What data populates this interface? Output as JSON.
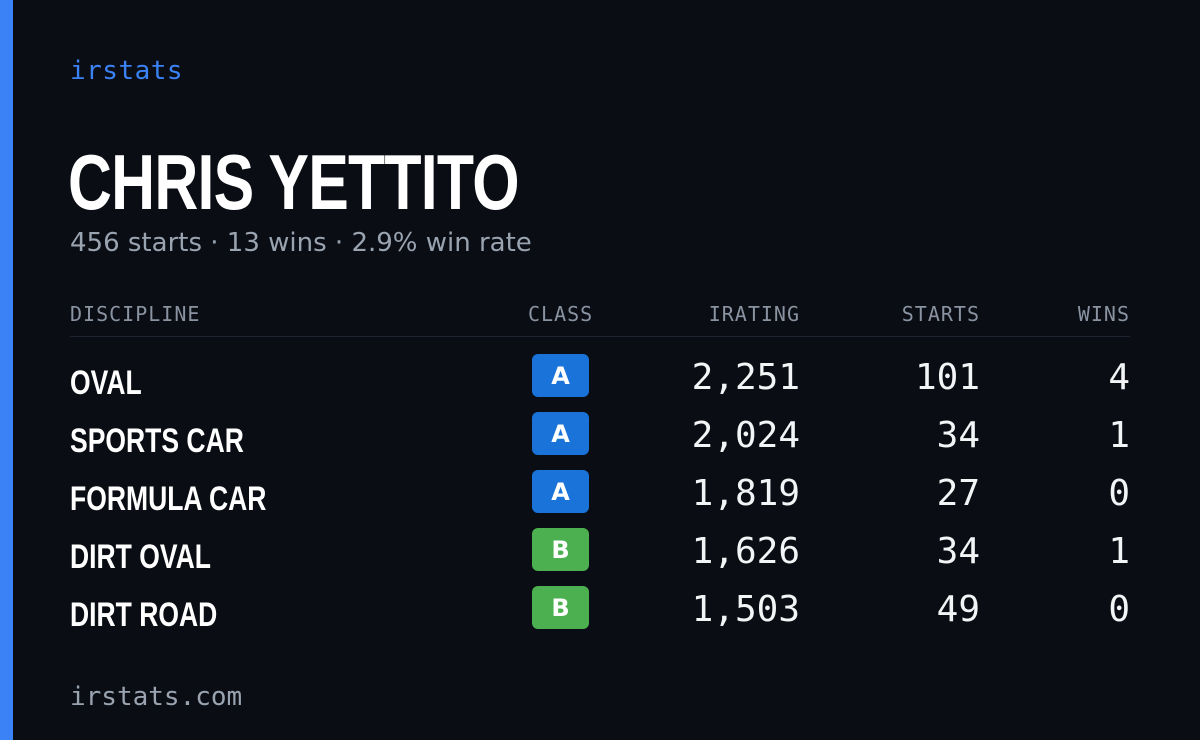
{
  "brand": "irstats",
  "driver": {
    "name": "CHRIS YETTITO",
    "summary": "456 starts · 13 wins · 2.9% win rate"
  },
  "colors": {
    "accent": "#3b82f6",
    "background": "#0a0d14",
    "class_a": "#1a73d9",
    "class_b": "#4caf50"
  },
  "table": {
    "headers": {
      "discipline": "DISCIPLINE",
      "class": "CLASS",
      "irating": "IRATING",
      "starts": "STARTS",
      "wins": "WINS"
    },
    "rows": [
      {
        "discipline": "OVAL",
        "class": "A",
        "irating": "2,251",
        "starts": "101",
        "wins": "4"
      },
      {
        "discipline": "SPORTS CAR",
        "class": "A",
        "irating": "2,024",
        "starts": "34",
        "wins": "1"
      },
      {
        "discipline": "FORMULA CAR",
        "class": "A",
        "irating": "1,819",
        "starts": "27",
        "wins": "0"
      },
      {
        "discipline": "DIRT OVAL",
        "class": "B",
        "irating": "1,626",
        "starts": "34",
        "wins": "1"
      },
      {
        "discipline": "DIRT ROAD",
        "class": "B",
        "irating": "1,503",
        "starts": "49",
        "wins": "0"
      }
    ]
  },
  "footer": "irstats.com"
}
